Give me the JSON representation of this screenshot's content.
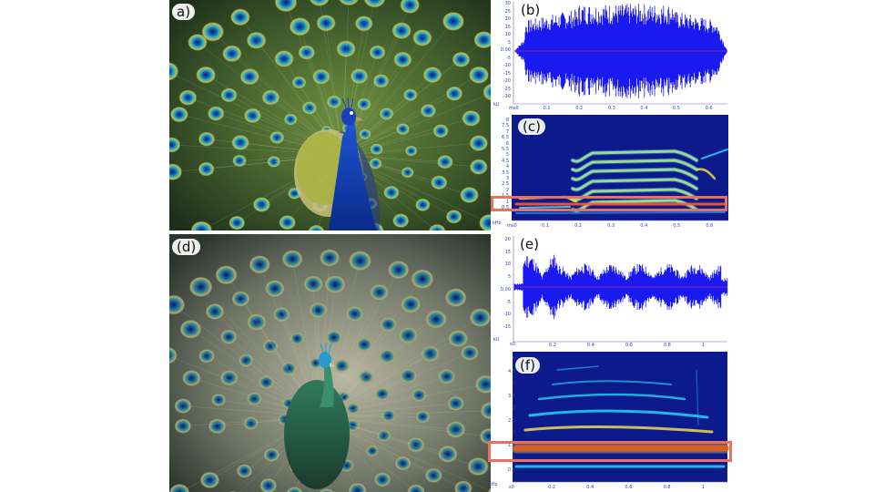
{
  "panels": {
    "a": {
      "label": "a)"
    },
    "b": {
      "label": "(b)",
      "y_ticks": [
        "30",
        "25",
        "20",
        "15",
        "10",
        "5",
        "0.00",
        "-5",
        "-10",
        "-15",
        "-20",
        "-25",
        "-30"
      ],
      "x_ticks": [
        "0.1",
        "0.2",
        "0.3",
        "0.4",
        "0.5",
        "0.6"
      ],
      "unit_y": "kU",
      "origin": "ms0"
    },
    "c": {
      "label": "(c)",
      "y_ticks": [
        "8",
        "7.5",
        "7",
        "6.5",
        "6",
        "5.5",
        "5",
        "4.5",
        "4",
        "3.5",
        "3",
        "2.5",
        "2",
        "1.5",
        "1",
        "0.5"
      ],
      "x_ticks": [
        "0.1",
        "0.2",
        "0.3",
        "0.4",
        "0.5",
        "0.6"
      ],
      "unit_y": "kHz",
      "origin": "ms0"
    },
    "d": {
      "label": "(d)"
    },
    "e": {
      "label": "(e)",
      "y_ticks": [
        "20",
        "15",
        "10",
        "5",
        "0.00",
        "-5",
        "-10",
        "-15"
      ],
      "x_ticks": [
        "0.2",
        "0.4",
        "0.6",
        "0.8",
        "1"
      ],
      "unit_y": "kU",
      "origin": "s0"
    },
    "f": {
      "label": "(f)",
      "y_ticks": [
        "5",
        "4.5",
        "4",
        "3.5",
        "3",
        "2.5",
        "2",
        "1.5",
        "1",
        "0.5"
      ],
      "x_ticks": [
        "0.2",
        "0.4",
        "0.6",
        "0.8",
        "1"
      ],
      "unit_y": "kHz",
      "origin": "s0"
    }
  },
  "colors": {
    "waveform": "#1a1af0",
    "spectrogram_bg": "#0d1a8c",
    "highlight": "#e8705f",
    "axis_text": "#2f3fb5"
  }
}
